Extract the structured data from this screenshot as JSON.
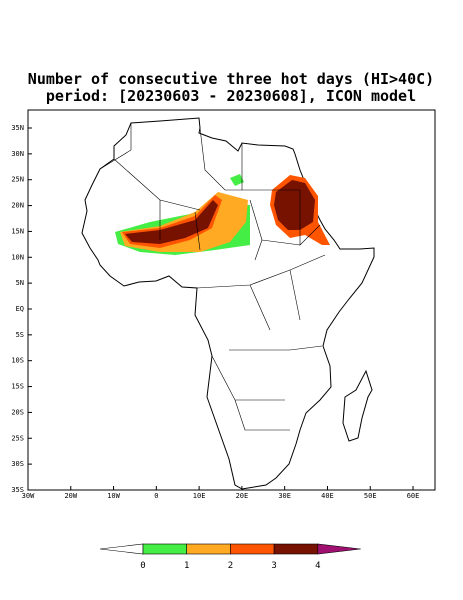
{
  "header": {
    "title_line1": "Number of consecutive three hot days (HI>40C)",
    "title_line2": "period: [20230603 - 20230608], ICON model"
  },
  "map": {
    "lon_ticks": [
      {
        "value": -30,
        "label": "30W"
      },
      {
        "value": -20,
        "label": "20W"
      },
      {
        "value": -10,
        "label": "10W"
      },
      {
        "value": 0,
        "label": "0"
      },
      {
        "value": 10,
        "label": "10E"
      },
      {
        "value": 20,
        "label": "20E"
      },
      {
        "value": 30,
        "label": "30E"
      },
      {
        "value": 40,
        "label": "40E"
      },
      {
        "value": 50,
        "label": "50E"
      },
      {
        "value": 60,
        "label": "60E"
      }
    ],
    "lat_ticks": [
      {
        "value": 35,
        "label": "35N"
      },
      {
        "value": 30,
        "label": "30N"
      },
      {
        "value": 25,
        "label": "25N"
      },
      {
        "value": 20,
        "label": "20N"
      },
      {
        "value": 15,
        "label": "15N"
      },
      {
        "value": 10,
        "label": "10N"
      },
      {
        "value": 5,
        "label": "5N"
      },
      {
        "value": 0,
        "label": "EQ"
      },
      {
        "value": -5,
        "label": "5S"
      },
      {
        "value": -10,
        "label": "10S"
      },
      {
        "value": -15,
        "label": "15S"
      },
      {
        "value": -20,
        "label": "20S"
      },
      {
        "value": -25,
        "label": "25S"
      },
      {
        "value": -30,
        "label": "30S"
      },
      {
        "value": -35,
        "label": "35S"
      }
    ]
  },
  "colorbar": {
    "levels": [
      0,
      1,
      2,
      3,
      4
    ],
    "colors": [
      "#ffffff",
      "#44ee44",
      "#ffaa22",
      "#ff5500",
      "#771100",
      "#a01070"
    ]
  }
}
